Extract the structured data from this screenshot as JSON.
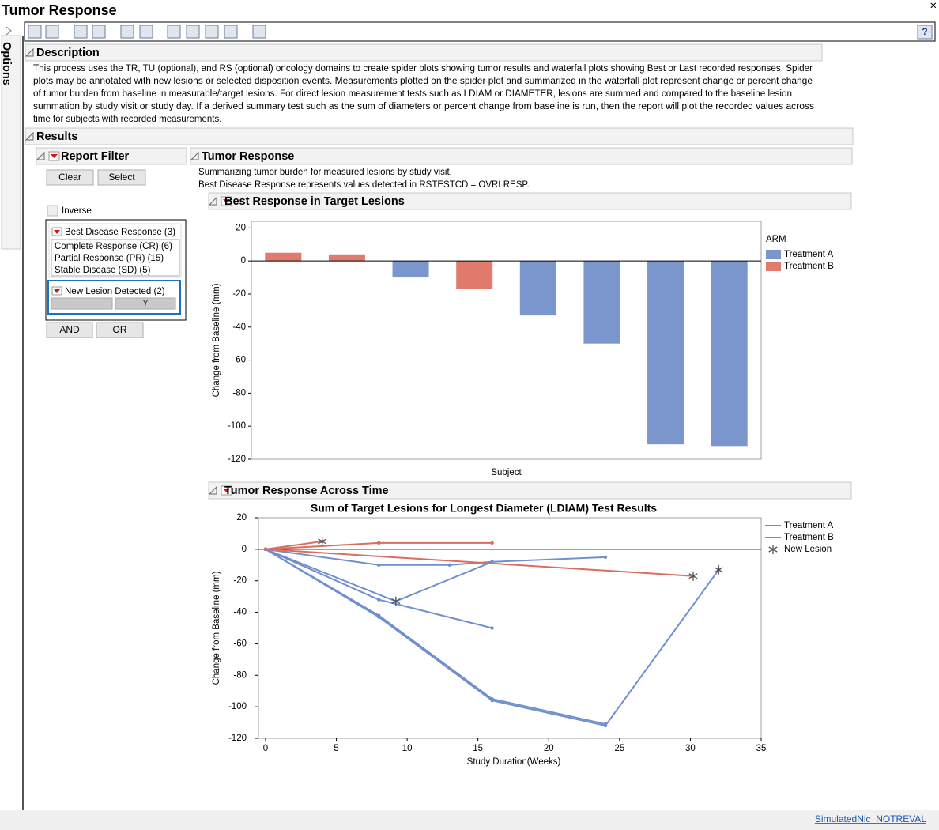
{
  "window": {
    "title": "Tumor Response",
    "options_tab": "Options",
    "footer_link": "SimulatedNic_NOTREVAL"
  },
  "description": {
    "heading": "Description",
    "lines": [
      "This process uses the TR, TU (optional), and RS (optional) oncology domains to create spider plots showing tumor results and waterfall plots showing Best or Last recorded responses. Spider",
      "plots may be annotated with new lesions or selected disposition events. Measurements plotted on the spider plot and summarized in the waterfall plot represent change or percent change",
      "of tumor burden from baseline in measurable/target lesions. For direct lesion measurement tests such as LDIAM or DIAMETER, lesions are summed and compared to the baseline lesion",
      "summation by study visit or study day. If a derived summary test such as the sum of diameters or percent change from baseline is run, then the report will plot the recorded values across",
      "time for subjects with recorded measurements."
    ]
  },
  "results": {
    "heading": "Results"
  },
  "report_filter": {
    "heading": "Report Filter",
    "clear": "Clear",
    "select": "Select",
    "inverse": "Inverse",
    "groups": [
      {
        "title": "Best Disease Response (3)",
        "items": [
          "Complete Response (CR) (6)",
          "Partial Response (PR) (15)",
          "Stable Disease (SD) (5)"
        ]
      },
      {
        "title": "New Lesion Detected (2)",
        "items": [
          "Y"
        ]
      }
    ],
    "and": "AND",
    "or": "OR"
  },
  "tumor_response": {
    "heading": "Tumor Response",
    "notes": [
      "Summarizing tumor burden for measured lesions by study visit.",
      "Best Disease Response represents values detected in RSTESTCD = OVRLRESP."
    ]
  },
  "chart_data": [
    {
      "type": "bar",
      "heading": "Best Response in Target Lesions",
      "x_label": "Subject",
      "y_label": "Change from Baseline (mm)",
      "categories": [
        null,
        null,
        null,
        null,
        null,
        null,
        null,
        null
      ],
      "legend_title": "ARM",
      "legend": "right",
      "series": [
        {
          "name": "Treatment A",
          "color": "#7b96cc",
          "values": [
            null,
            null,
            -10,
            null,
            -33,
            -50,
            -111,
            -112
          ]
        },
        {
          "name": "Treatment B",
          "color": "#e07b6e",
          "values": [
            5,
            4,
            null,
            -17,
            null,
            null,
            null,
            null
          ]
        }
      ],
      "ylim": [
        -120,
        24
      ],
      "yticks": [
        -120,
        -100,
        -80,
        -60,
        -40,
        -20,
        0,
        20
      ],
      "grid": false
    },
    {
      "type": "line",
      "heading": "Tumor Response Across Time",
      "title": "Sum of Target Lesions for Longest Diameter (LDIAM) Test Results",
      "x_label": "Study Duration(Weeks)",
      "y_label": "Change from Baseline (mm)",
      "legend": "right",
      "series": [
        {
          "name": "Treatment A",
          "color": "#6f8fcf",
          "lines": [
            {
              "x": [
                0,
                8,
                13,
                16,
                24
              ],
              "values": [
                0,
                -10,
                -10,
                -8,
                -5
              ]
            },
            {
              "x": [
                0,
                8,
                16
              ],
              "values": [
                0,
                -32,
                -50
              ]
            },
            {
              "x": [
                0,
                9.2,
                16
              ],
              "values": [
                0,
                -33,
                -8
              ]
            },
            {
              "x": [
                0,
                8,
                16,
                24
              ],
              "values": [
                0,
                -42,
                -95,
                -111
              ]
            },
            {
              "x": [
                0,
                8,
                16,
                24,
                32
              ],
              "values": [
                0,
                -43,
                -96,
                -112,
                -13
              ]
            }
          ]
        },
        {
          "name": "Treatment B",
          "color": "#d96d60",
          "lines": [
            {
              "x": [
                0,
                4
              ],
              "values": [
                0,
                5
              ]
            },
            {
              "x": [
                0,
                8,
                16
              ],
              "values": [
                0,
                4,
                4
              ]
            },
            {
              "x": [
                0,
                30.2
              ],
              "values": [
                0,
                -17
              ]
            }
          ]
        }
      ],
      "markers": {
        "name": "New Lesion",
        "color": "#555555",
        "x": [
          4,
          9.2,
          30.2,
          32
        ],
        "values": [
          5,
          -33,
          -17,
          -13
        ]
      },
      "xlim": [
        -0.5,
        35
      ],
      "xticks": [
        0,
        5,
        10,
        15,
        20,
        25,
        30,
        35
      ],
      "ylim": [
        -120,
        20
      ],
      "yticks": [
        -120,
        -100,
        -80,
        -60,
        -40,
        -20,
        0,
        20
      ],
      "grid": false
    }
  ]
}
